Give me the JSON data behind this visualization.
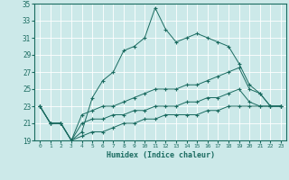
{
  "xlabel": "Humidex (Indice chaleur)",
  "xlim": [
    -0.5,
    23.5
  ],
  "ylim": [
    19,
    35
  ],
  "yticks": [
    19,
    21,
    23,
    25,
    27,
    29,
    31,
    33,
    35
  ],
  "xticks": [
    0,
    1,
    2,
    3,
    4,
    5,
    6,
    7,
    8,
    9,
    10,
    11,
    12,
    13,
    14,
    15,
    16,
    17,
    18,
    19,
    20,
    21,
    22,
    23
  ],
  "bg_color": "#cce9e9",
  "line_color": "#1a6b60",
  "grid_color": "#ffffff",
  "curves": {
    "top": {
      "x": [
        0,
        1,
        2,
        3,
        4,
        5,
        6,
        7,
        8,
        9,
        10,
        11,
        12,
        13,
        14,
        15,
        16,
        17,
        18,
        19,
        20,
        21,
        22,
        23
      ],
      "y": [
        23,
        21,
        21,
        19,
        20,
        24,
        26,
        27,
        29.5,
        30,
        31,
        34.5,
        32,
        30.5,
        31,
        31.5,
        31,
        30.5,
        30,
        28,
        25.5,
        24.5,
        23,
        23
      ]
    },
    "mid_upper": {
      "x": [
        0,
        1,
        2,
        3,
        4,
        5,
        6,
        7,
        8,
        9,
        10,
        11,
        12,
        13,
        14,
        15,
        16,
        17,
        18,
        19,
        20,
        21,
        22,
        23
      ],
      "y": [
        23,
        21,
        21,
        19,
        22,
        22.5,
        23,
        23,
        23.5,
        24,
        24.5,
        25,
        25,
        25,
        25.5,
        25.5,
        26,
        26.5,
        27,
        27.5,
        25,
        24.5,
        23,
        23
      ]
    },
    "mid_lower": {
      "x": [
        0,
        1,
        2,
        3,
        4,
        5,
        6,
        7,
        8,
        9,
        10,
        11,
        12,
        13,
        14,
        15,
        16,
        17,
        18,
        19,
        20,
        21,
        22,
        23
      ],
      "y": [
        23,
        21,
        21,
        19,
        21,
        21.5,
        21.5,
        22,
        22,
        22.5,
        22.5,
        23,
        23,
        23,
        23.5,
        23.5,
        24,
        24,
        24.5,
        25,
        23.5,
        23,
        23,
        23
      ]
    },
    "bottom": {
      "x": [
        0,
        1,
        2,
        3,
        4,
        5,
        6,
        7,
        8,
        9,
        10,
        11,
        12,
        13,
        14,
        15,
        16,
        17,
        18,
        19,
        20,
        21,
        22,
        23
      ],
      "y": [
        23,
        21,
        21,
        19,
        19.5,
        20,
        20,
        20.5,
        21,
        21,
        21.5,
        21.5,
        22,
        22,
        22,
        22,
        22.5,
        22.5,
        23,
        23,
        23,
        23,
        23,
        23
      ]
    }
  }
}
